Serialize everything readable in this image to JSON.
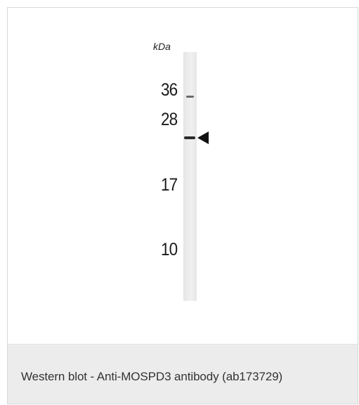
{
  "figure": {
    "unit_label": "kDa",
    "markers": [
      {
        "label": "36",
        "kda": 36
      },
      {
        "label": "28",
        "kda": 28
      },
      {
        "label": "17",
        "kda": 17
      },
      {
        "label": "10",
        "kda": 10
      }
    ],
    "bands": [
      {
        "kda": 36,
        "intensity": 0.35
      },
      {
        "kda": 24,
        "intensity": 0.9
      }
    ],
    "arrow_target_kda": 24,
    "icons": [
      "arrowhead-icon"
    ]
  },
  "caption": {
    "text": "Western blot - Anti-MOSPD3 antibody (ab173729)"
  },
  "colors": {
    "caption_background": "#ececec",
    "caption_text": "#333333",
    "band": "#2b2b2b"
  }
}
